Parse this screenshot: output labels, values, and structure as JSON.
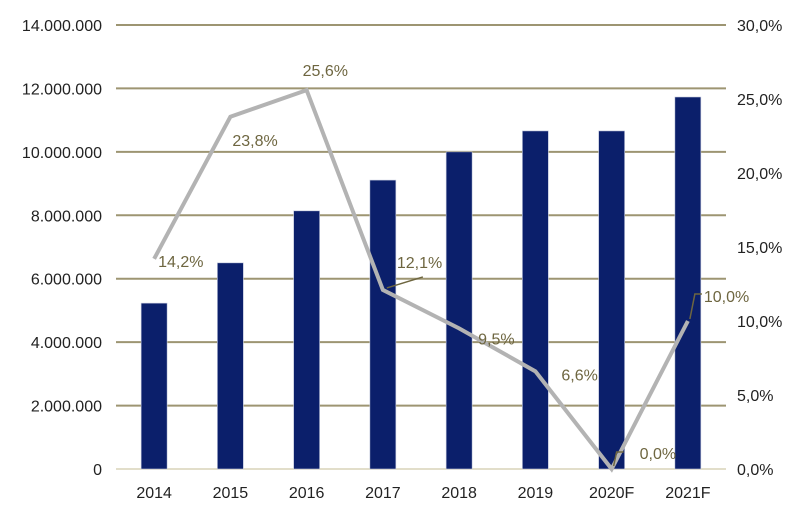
{
  "chart_data": {
    "type": "bar+line",
    "title": "",
    "categories": [
      "2014",
      "2015",
      "2016",
      "2017",
      "2018",
      "2019",
      "2020F",
      "2021F"
    ],
    "series": [
      {
        "type": "bar",
        "axis": "left",
        "values": [
          5230000,
          6500000,
          8140000,
          9110000,
          10000000,
          10660000,
          10660000,
          11730000
        ]
      },
      {
        "type": "line",
        "axis": "right",
        "values": [
          14.2,
          23.8,
          25.6,
          12.1,
          9.5,
          6.6,
          0.0,
          10.0
        ],
        "data_labels": [
          "14,2%",
          "23,8%",
          "25,6%",
          "12,1%",
          "9,5%",
          "6,6%",
          "0,0%",
          "10,0%"
        ]
      }
    ],
    "y_left": {
      "lim": [
        0,
        14000000
      ],
      "ticks": [
        "0",
        "2.000.000",
        "4.000.000",
        "6.000.000",
        "8.000.000",
        "10.000.000",
        "12.000.000",
        "14.000.000"
      ]
    },
    "y_right": {
      "lim": [
        0,
        30
      ],
      "ticks": [
        "0,0%",
        "5,0%",
        "10,0%",
        "15,0%",
        "20,0%",
        "25,0%",
        "30,0%"
      ]
    },
    "grid": true,
    "legend": "none",
    "colors": {
      "bar": "#0b1f6b",
      "line": "#b3b3b3",
      "grid": "#9d9572",
      "label": "#6e6640",
      "tick": "#222222"
    }
  }
}
